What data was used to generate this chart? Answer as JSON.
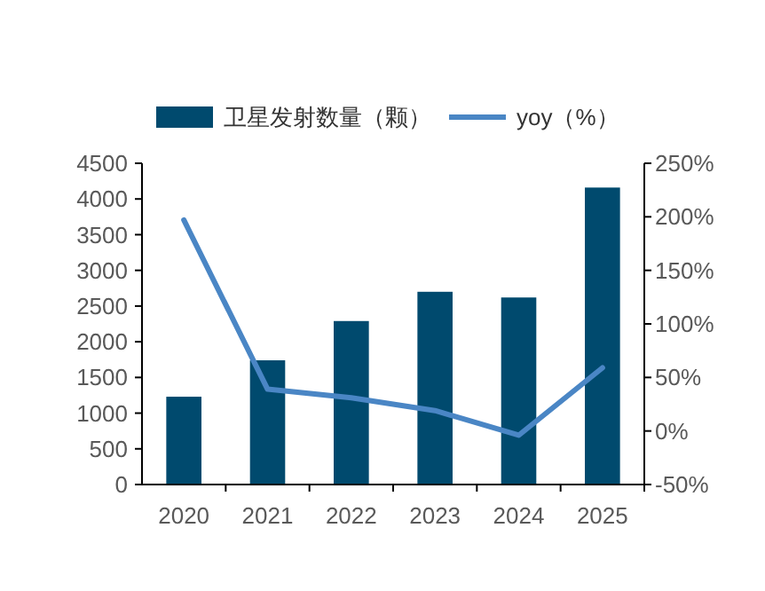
{
  "chart_data": {
    "type": "bar",
    "categories": [
      "2020",
      "2021",
      "2022",
      "2023",
      "2024",
      "2025"
    ],
    "series": [
      {
        "name": "卫星发射数量（颗）",
        "color": "#004a6e",
        "values": [
          1230,
          1740,
          2290,
          2700,
          2620,
          4160
        ]
      },
      {
        "name": "yoy（%）",
        "type": "line",
        "axis": "y2",
        "color": "#4a86c5",
        "values": [
          197,
          39,
          31,
          19,
          -4,
          59
        ]
      }
    ],
    "ylim": [
      0,
      4500
    ],
    "yticks": [
      0,
      500,
      1000,
      1500,
      2000,
      2500,
      3000,
      3500,
      4000,
      4500
    ],
    "y2lim": [
      -50,
      250
    ],
    "y2ticks": [
      {
        "value": -50,
        "label": "-50%"
      },
      {
        "value": 0,
        "label": "0%"
      },
      {
        "value": 50,
        "label": "50%"
      },
      {
        "value": 100,
        "label": "100%"
      },
      {
        "value": 150,
        "label": "150%"
      },
      {
        "value": 200,
        "label": "200%"
      },
      {
        "value": 250,
        "label": "250%"
      }
    ],
    "grid": false,
    "legend": "top",
    "marker": "none"
  }
}
